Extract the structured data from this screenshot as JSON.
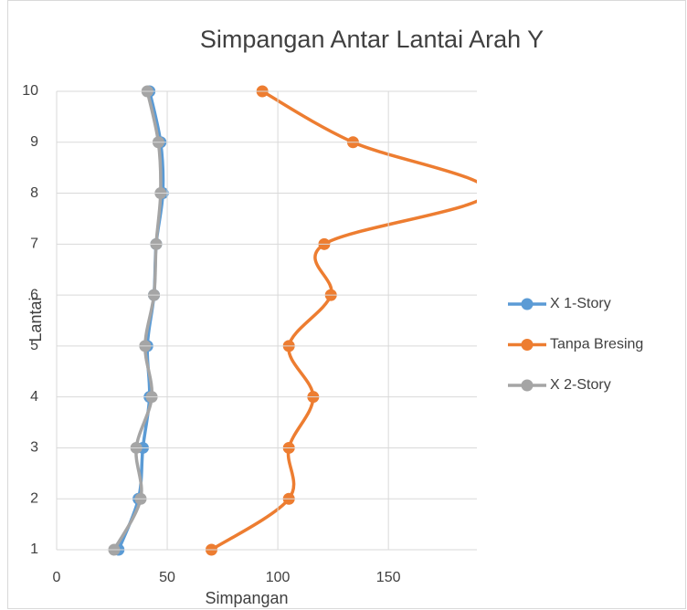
{
  "chart_data": {
    "type": "line",
    "title": "Simpangan Antar Lantai Arah Y",
    "x_label": "Simpangan",
    "y_label": "Lantai",
    "floors": [
      1,
      2,
      3,
      4,
      5,
      6,
      7,
      8,
      9,
      10
    ],
    "series": [
      {
        "name": "X 1-Story",
        "color": "#5b9bd5",
        "values": [
          28,
          37,
          39,
          42,
          41,
          44,
          45,
          48,
          47,
          42
        ]
      },
      {
        "name": "Tanpa Bresing",
        "color": "#ed7d31",
        "values": [
          70,
          105,
          105,
          116,
          105,
          124,
          121,
          195,
          134,
          93
        ]
      },
      {
        "name": "X 2-Story",
        "color": "#a5a5a5",
        "values": [
          26,
          38,
          36,
          43,
          40,
          44,
          45,
          47,
          46,
          41
        ]
      }
    ],
    "xlim": [
      0,
      190
    ],
    "xticks": [
      0,
      50,
      100,
      150
    ],
    "ylim": [
      1,
      10
    ],
    "yticks": [
      1,
      2,
      3,
      4,
      5,
      6,
      7,
      8,
      9,
      10
    ],
    "grid": true,
    "smooth": true,
    "legend": "right"
  }
}
